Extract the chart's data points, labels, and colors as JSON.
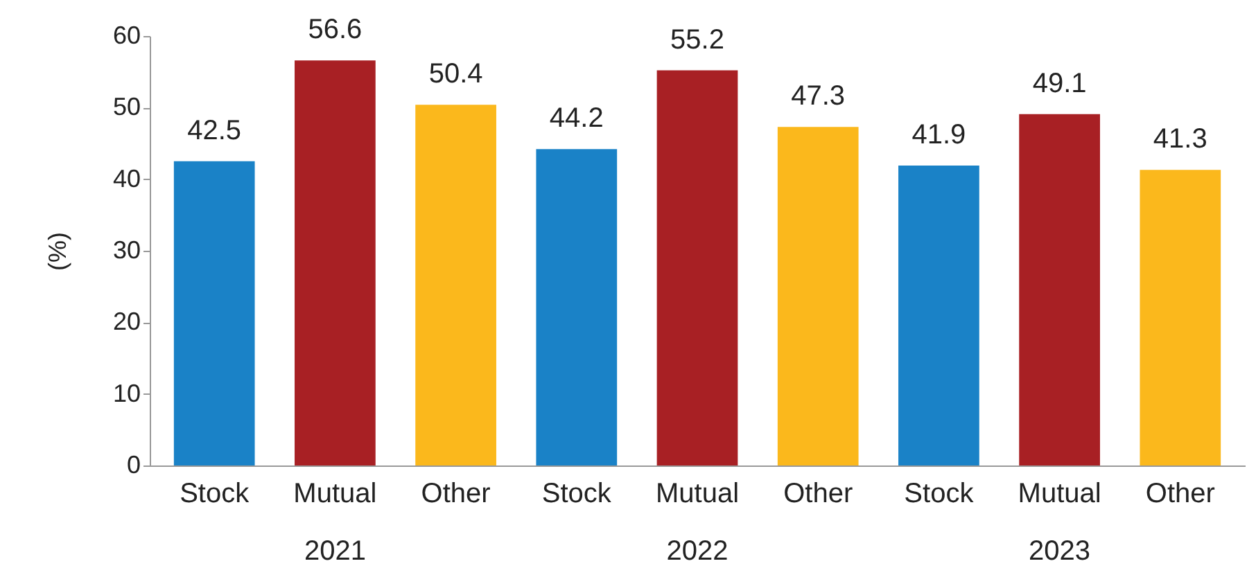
{
  "chart_data": {
    "type": "bar",
    "ylabel": "(%)",
    "categories": [
      "Stock",
      "Mutual",
      "Other",
      "Stock",
      "Mutual",
      "Other",
      "Stock",
      "Mutual",
      "Other"
    ],
    "values": [
      42.5,
      56.6,
      50.4,
      44.2,
      55.2,
      47.3,
      41.9,
      49.1,
      41.3
    ],
    "colors": [
      "#1a82c7",
      "#a82024",
      "#fbb81c",
      "#1a82c7",
      "#a82024",
      "#fbb81c",
      "#1a82c7",
      "#a82024",
      "#fbb81c"
    ],
    "ylim": [
      0,
      60
    ],
    "yticks": [
      0,
      10,
      20,
      30,
      40,
      50,
      60
    ],
    "grid": false,
    "data_labels": true,
    "annotations": [
      "2021",
      "2022",
      "2023"
    ]
  }
}
